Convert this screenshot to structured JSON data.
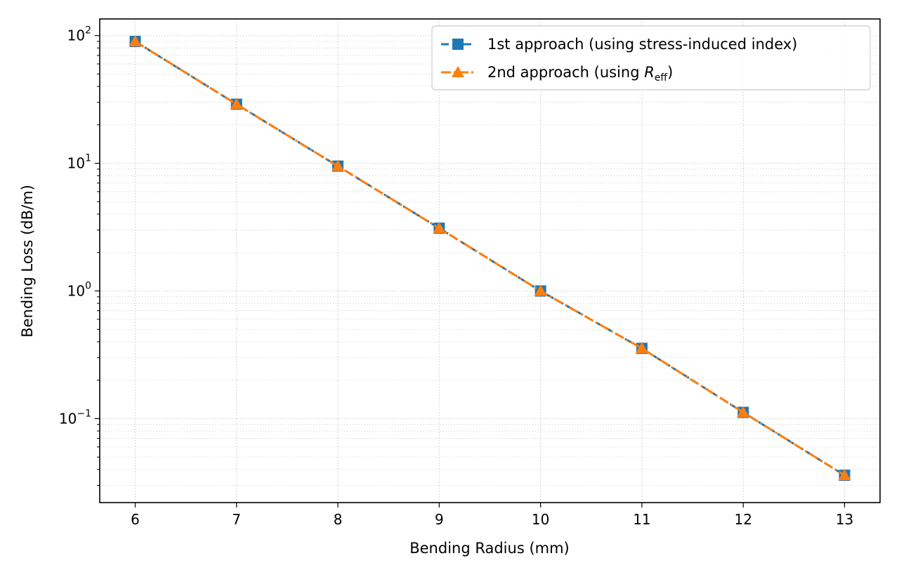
{
  "chart_data": {
    "type": "line",
    "xlabel": "Bending Radius (mm)",
    "ylabel": "Bending Loss (dB/m)",
    "x": [
      6,
      7,
      8,
      9,
      10,
      11,
      12,
      13
    ],
    "xlim": [
      5.65,
      13.35
    ],
    "ylim": [
      0.022,
      135
    ],
    "yscale": "log",
    "x_ticks": [
      "6",
      "7",
      "8",
      "9",
      "10",
      "11",
      "12",
      "13"
    ],
    "y_ticks": [
      {
        "value": 0.1,
        "base": "10",
        "exp": "−1"
      },
      {
        "value": 1,
        "base": "10",
        "exp": "0"
      },
      {
        "value": 10,
        "base": "10",
        "exp": "1"
      },
      {
        "value": 100,
        "base": "10",
        "exp": "2"
      }
    ],
    "grid": true,
    "legend_position": "top-right",
    "series": [
      {
        "name": "1st approach (using stress-induced index)",
        "color": "#1f77b4",
        "marker": "square",
        "linestyle": "dashed",
        "values": [
          90,
          29,
          9.5,
          3.1,
          1.0,
          0.355,
          0.112,
          0.036
        ]
      },
      {
        "name_prefix": "2nd approach (using ",
        "name_var": "R",
        "name_sub": "eff",
        "name_suffix": ")",
        "color": "#ff7f0e",
        "marker": "triangle",
        "linestyle": "dashdot",
        "values": [
          90,
          29,
          9.5,
          3.1,
          1.0,
          0.355,
          0.112,
          0.036
        ]
      }
    ]
  }
}
